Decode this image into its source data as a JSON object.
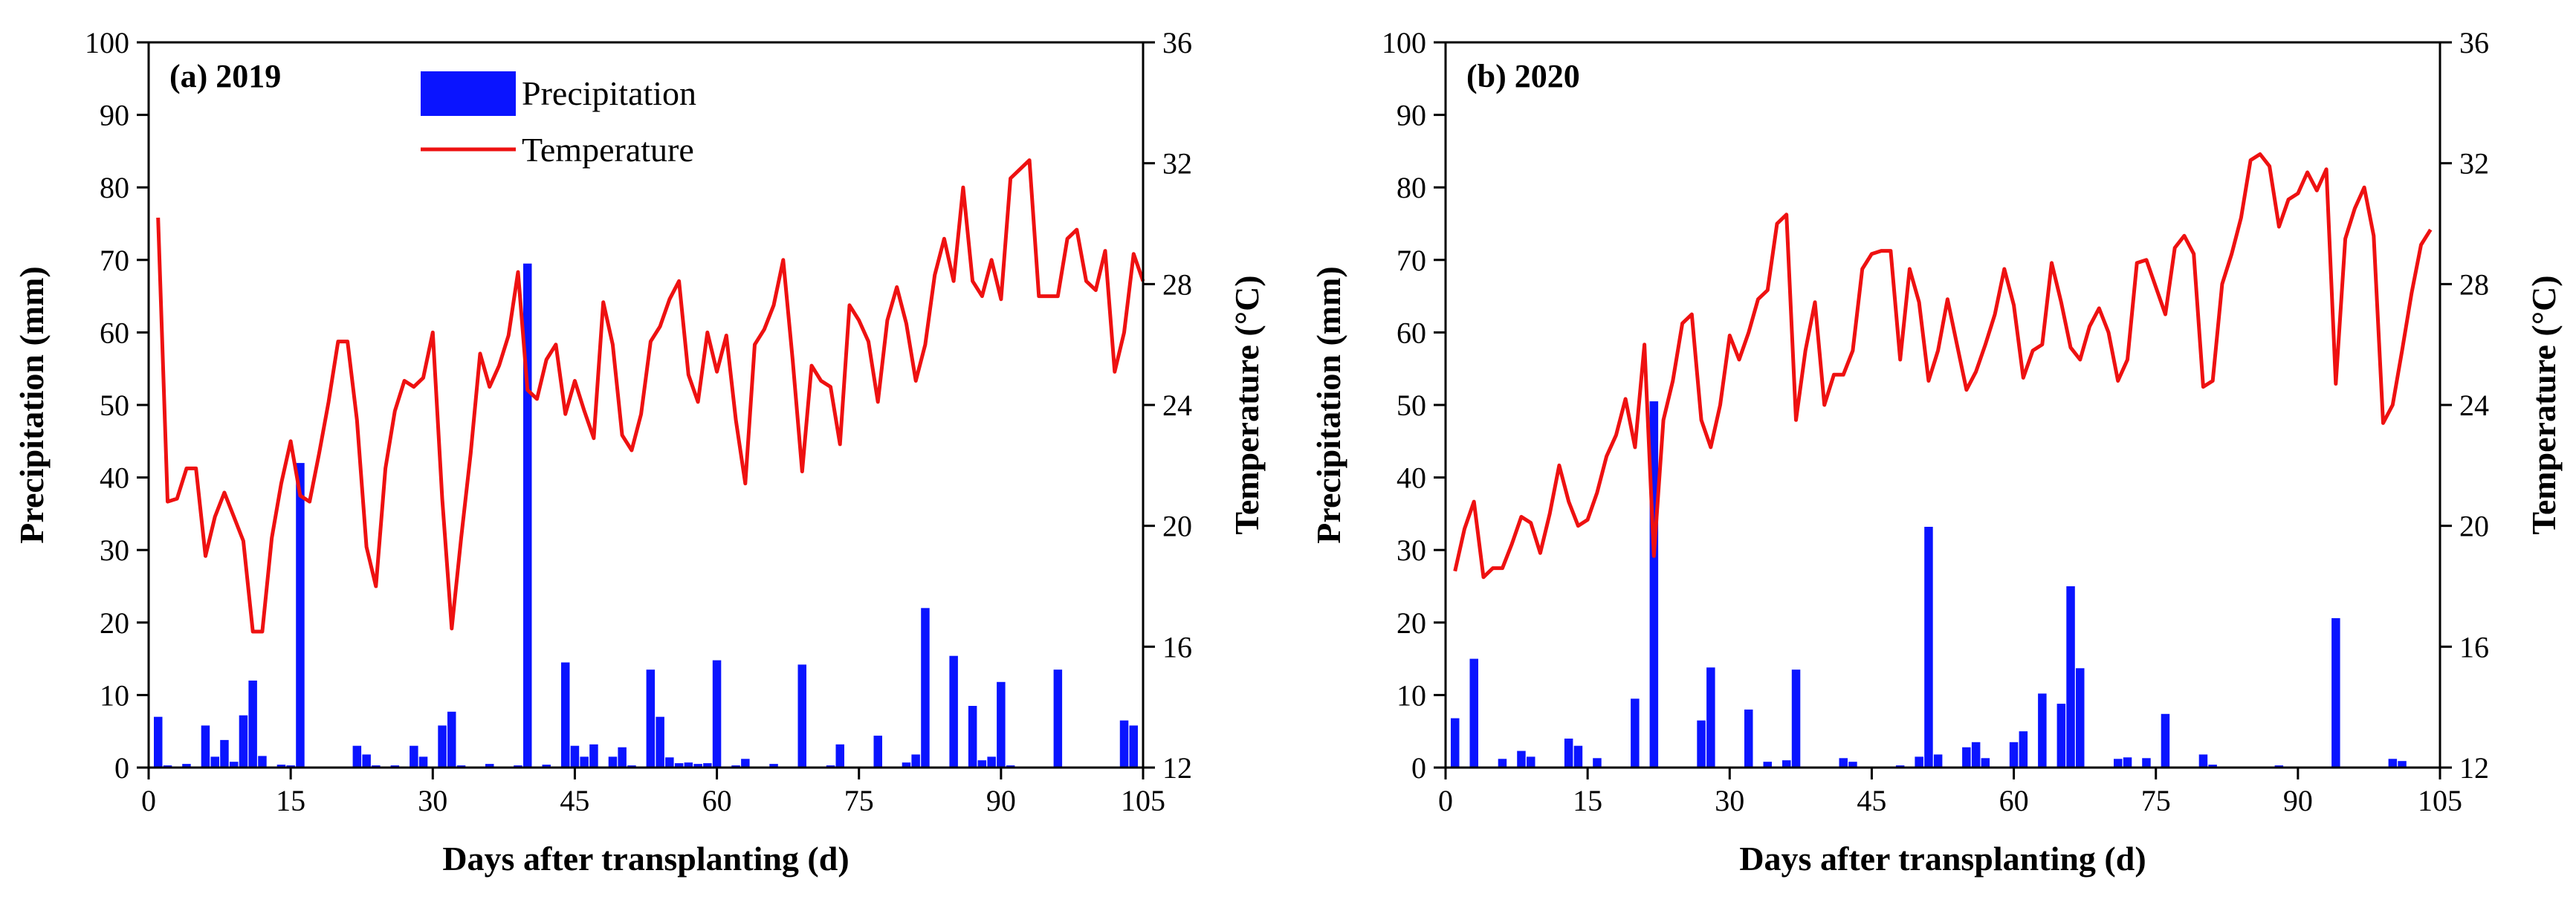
{
  "colors": {
    "precipitation": "#0a14ff",
    "temperature": "#ee1111",
    "axis": "#000000"
  },
  "legend": {
    "precipitation": "Precipitation",
    "temperature": "Temperature"
  },
  "chart_data": [
    {
      "type": "bar+line",
      "title": "(a) 2019",
      "xlabel": "Days after transplanting (d)",
      "ylabel": "Precipitation (mm)",
      "y2label": "Temperature (°C)",
      "xlim": [
        0,
        105
      ],
      "ylim": [
        0,
        100
      ],
      "y2lim": [
        12,
        36
      ],
      "xticks": [
        0,
        15,
        30,
        45,
        60,
        75,
        90,
        105
      ],
      "yticks": [
        0,
        10,
        20,
        30,
        40,
        50,
        60,
        70,
        80,
        90,
        100
      ],
      "y2ticks": [
        12,
        16,
        20,
        24,
        28,
        32,
        36
      ],
      "precipitation": {
        "name": "Precipitation",
        "x": [
          1,
          2,
          4,
          6,
          7,
          8,
          9,
          10,
          11,
          12,
          14,
          15,
          16,
          22,
          23,
          24,
          26,
          28,
          29,
          31,
          32,
          33,
          36,
          39,
          40,
          42,
          44,
          45,
          46,
          47,
          49,
          50,
          51,
          53,
          54,
          55,
          56,
          57,
          58,
          59,
          60,
          62,
          63,
          66,
          69,
          72,
          73,
          77,
          80,
          81,
          82,
          85,
          87,
          88,
          89,
          90,
          91,
          96,
          103,
          104
        ],
        "values": [
          7.0,
          0.3,
          0.5,
          5.8,
          1.5,
          3.8,
          0.8,
          7.2,
          12.0,
          1.6,
          0.4,
          0.3,
          42.0,
          3.0,
          1.8,
          0.3,
          0.3,
          3.0,
          1.5,
          5.8,
          7.7,
          0.3,
          0.5,
          0.3,
          69.5,
          0.4,
          14.5,
          3.0,
          1.5,
          3.2,
          1.5,
          2.8,
          0.3,
          13.5,
          7.0,
          1.4,
          0.6,
          0.7,
          0.5,
          0.6,
          14.8,
          0.3,
          1.2,
          0.5,
          14.2,
          0.3,
          3.2,
          4.4,
          0.7,
          1.8,
          22.0,
          15.4,
          8.5,
          1.0,
          1.5,
          11.8,
          0.3,
          13.5,
          6.5,
          5.8
        ]
      },
      "temperature": {
        "name": "Temperature",
        "x": [
          1,
          2,
          3,
          4,
          5,
          6,
          7,
          8,
          9,
          10,
          11,
          12,
          13,
          14,
          15,
          16,
          17,
          18,
          19,
          20,
          21,
          22,
          23,
          24,
          25,
          26,
          27,
          28,
          29,
          30,
          31,
          32,
          33,
          34,
          35,
          36,
          37,
          38,
          39,
          40,
          41,
          42,
          43,
          44,
          45,
          46,
          47,
          48,
          49,
          50,
          51,
          52,
          53,
          54,
          55,
          56,
          57,
          58,
          59,
          60,
          61,
          62,
          63,
          64,
          65,
          66,
          67,
          68,
          69,
          70,
          71,
          72,
          73,
          74,
          75,
          76,
          77,
          78,
          79,
          80,
          81,
          82,
          83,
          84,
          85,
          86,
          87,
          88,
          89,
          90,
          91,
          92,
          93,
          94,
          95,
          96,
          97,
          98,
          99,
          100,
          101,
          102,
          103,
          104,
          105
        ],
        "values": [
          30.2,
          20.8,
          20.9,
          21.9,
          21.9,
          19.0,
          20.3,
          21.1,
          20.3,
          19.5,
          16.5,
          16.5,
          19.6,
          21.4,
          22.8,
          21.0,
          20.8,
          22.4,
          24.1,
          26.1,
          26.1,
          23.5,
          19.3,
          18.0,
          21.9,
          23.8,
          24.8,
          24.6,
          24.9,
          26.4,
          20.9,
          16.6,
          19.6,
          22.4,
          25.7,
          24.6,
          25.3,
          26.3,
          28.4,
          24.5,
          24.2,
          25.5,
          26.0,
          23.7,
          24.8,
          23.8,
          22.9,
          27.4,
          26.0,
          23.0,
          22.5,
          23.7,
          26.1,
          26.6,
          27.5,
          28.1,
          25.0,
          24.1,
          26.4,
          25.1,
          26.3,
          23.5,
          21.4,
          26.0,
          26.5,
          27.3,
          28.8,
          25.5,
          21.8,
          25.3,
          24.8,
          24.6,
          22.7,
          27.3,
          26.8,
          26.1,
          24.1,
          26.8,
          27.9,
          26.7,
          24.8,
          26.0,
          28.3,
          29.5,
          28.1,
          31.2,
          28.1,
          27.6,
          28.8,
          27.5,
          31.5,
          31.8,
          32.1,
          27.6,
          27.6,
          27.6,
          29.5,
          29.8,
          28.1,
          27.8,
          29.1,
          25.1,
          26.4,
          29.0,
          28.1
        ]
      }
    },
    {
      "type": "bar+line",
      "title": "(b) 2020",
      "xlabel": "Days after transplanting (d)",
      "ylabel": "Precipitation (mm)",
      "y2label": "Temperature (°C)",
      "xlim": [
        0,
        105
      ],
      "ylim": [
        0,
        100
      ],
      "y2lim": [
        12,
        36
      ],
      "xticks": [
        0,
        15,
        30,
        45,
        60,
        75,
        90,
        105
      ],
      "yticks": [
        0,
        10,
        20,
        30,
        40,
        50,
        60,
        70,
        80,
        90,
        100
      ],
      "y2ticks": [
        12,
        16,
        20,
        24,
        28,
        32,
        36
      ],
      "precipitation": {
        "name": "Precipitation",
        "x": [
          1,
          3,
          6,
          8,
          9,
          13,
          14,
          16,
          20,
          22,
          27,
          28,
          32,
          34,
          36,
          37,
          42,
          43,
          48,
          50,
          51,
          52,
          55,
          56,
          57,
          60,
          61,
          63,
          65,
          66,
          67,
          71,
          72,
          74,
          76,
          80,
          81,
          88,
          94,
          100,
          101
        ],
        "values": [
          6.8,
          15.0,
          1.2,
          2.3,
          1.5,
          4.0,
          3.0,
          1.3,
          9.5,
          50.5,
          6.5,
          13.8,
          8.0,
          0.8,
          1.0,
          13.5,
          1.3,
          0.8,
          0.3,
          1.5,
          33.2,
          1.8,
          2.8,
          3.5,
          1.3,
          3.5,
          5.0,
          10.2,
          8.8,
          25.0,
          13.7,
          1.2,
          1.4,
          1.3,
          7.4,
          1.8,
          0.4,
          0.3,
          20.6,
          1.2,
          0.9
        ]
      },
      "temperature": {
        "name": "Temperature",
        "x": [
          1,
          2,
          3,
          4,
          5,
          6,
          7,
          8,
          9,
          10,
          11,
          12,
          13,
          14,
          15,
          16,
          17,
          18,
          19,
          20,
          21,
          22,
          23,
          24,
          25,
          26,
          27,
          28,
          29,
          30,
          31,
          32,
          33,
          34,
          35,
          36,
          37,
          38,
          39,
          40,
          41,
          42,
          43,
          44,
          45,
          46,
          47,
          48,
          49,
          50,
          51,
          52,
          53,
          54,
          55,
          56,
          57,
          58,
          59,
          60,
          61,
          62,
          63,
          64,
          65,
          66,
          67,
          68,
          69,
          70,
          71,
          72,
          73,
          74,
          75,
          76,
          77,
          78,
          79,
          80,
          81,
          82,
          83,
          84,
          85,
          86,
          87,
          88,
          89,
          90,
          91,
          92,
          93,
          94,
          95,
          96,
          97,
          98,
          99,
          100,
          101,
          102,
          103,
          104
        ],
        "values": [
          18.5,
          19.9,
          20.8,
          18.3,
          18.6,
          18.6,
          19.4,
          20.3,
          20.1,
          19.1,
          20.4,
          22.0,
          20.8,
          20.0,
          20.2,
          21.1,
          22.3,
          23.0,
          24.2,
          22.6,
          26.0,
          19.0,
          23.5,
          24.8,
          26.7,
          27.0,
          23.5,
          22.6,
          24.0,
          26.3,
          25.5,
          26.4,
          27.5,
          27.8,
          30.0,
          30.3,
          23.5,
          25.8,
          27.4,
          24.0,
          25.0,
          25.0,
          25.8,
          28.5,
          29.0,
          29.1,
          29.1,
          25.5,
          28.5,
          27.4,
          24.8,
          25.8,
          27.5,
          26.0,
          24.5,
          25.1,
          26.0,
          27.0,
          28.5,
          27.3,
          24.9,
          25.8,
          26.0,
          28.7,
          27.4,
          25.9,
          25.5,
          26.6,
          27.2,
          26.4,
          24.8,
          25.5,
          28.7,
          28.8,
          27.9,
          27.0,
          29.2,
          29.6,
          29.0,
          24.6,
          24.8,
          28.0,
          29.0,
          30.2,
          32.1,
          32.3,
          31.9,
          29.9,
          30.8,
          31.0,
          31.7,
          31.1,
          31.8,
          24.7,
          29.5,
          30.5,
          31.2,
          29.6,
          23.4,
          24.0,
          25.8,
          27.7,
          29.3,
          29.8
        ]
      }
    }
  ]
}
